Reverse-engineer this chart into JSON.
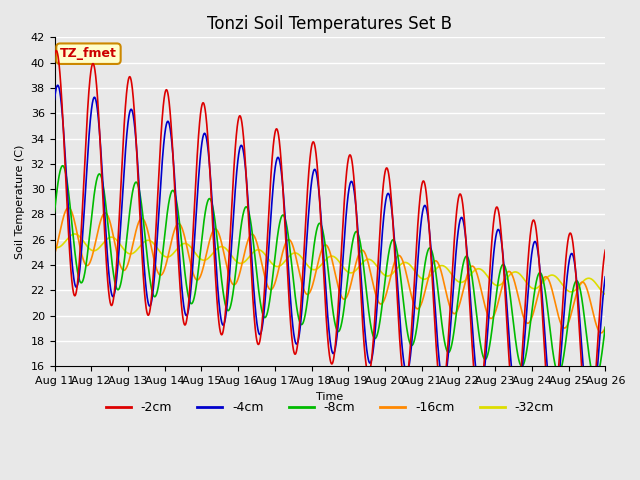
{
  "title": "Tonzi Soil Temperatures Set B",
  "xlabel": "Time",
  "ylabel": "Soil Temperature (C)",
  "ylim": [
    16,
    42
  ],
  "xlim": [
    0,
    15
  ],
  "x_tick_labels": [
    "Aug 11",
    "Aug 12",
    "Aug 13",
    "Aug 14",
    "Aug 15",
    "Aug 16",
    "Aug 17",
    "Aug 18",
    "Aug 19",
    "Aug 20",
    "Aug 21",
    "Aug 22",
    "Aug 23",
    "Aug 24",
    "Aug 25",
    "Aug 26"
  ],
  "series": {
    "-2cm": {
      "color": "#dd0000",
      "lw": 1.2
    },
    "-4cm": {
      "color": "#0000cc",
      "lw": 1.2
    },
    "-8cm": {
      "color": "#00bb00",
      "lw": 1.2
    },
    "-16cm": {
      "color": "#ff8800",
      "lw": 1.2
    },
    "-32cm": {
      "color": "#dddd00",
      "lw": 1.2
    }
  },
  "annotation_text": "TZ_fmet",
  "annotation_color": "#cc0000",
  "annotation_bg": "#ffffcc",
  "annotation_border": "#cc8800",
  "bg_color": "#e8e8e8",
  "grid_color": "#ffffff",
  "title_fontsize": 12,
  "axis_fontsize": 8,
  "legend_fontsize": 9
}
